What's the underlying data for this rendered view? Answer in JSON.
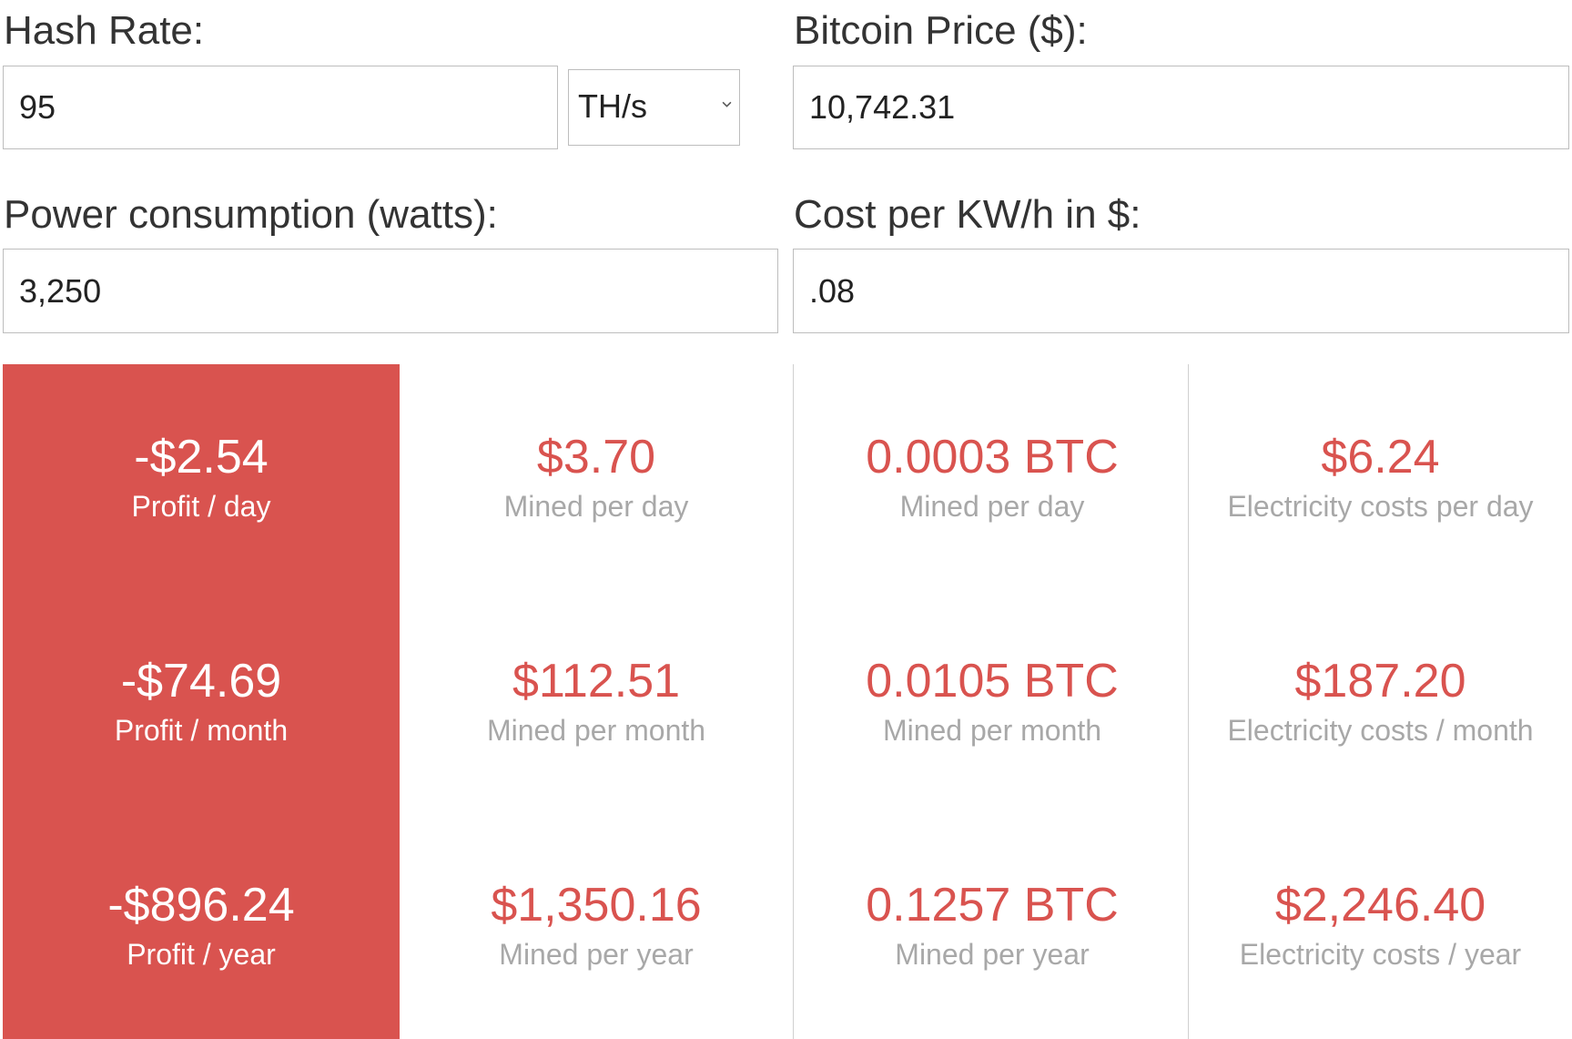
{
  "form": {
    "hash_rate": {
      "label": "Hash Rate:",
      "value": "95",
      "unit": "TH/s"
    },
    "bitcoin_price": {
      "label": "Bitcoin Price ($):",
      "value": "10,742.31"
    },
    "power_consumption": {
      "label": "Power consumption (watts):",
      "value": "3,250"
    },
    "cost_per_kwh": {
      "label": "Cost per KW/h in $:",
      "value": ".08"
    }
  },
  "results": {
    "profit": [
      {
        "value": "-$2.54",
        "caption": "Profit / day"
      },
      {
        "value": "-$74.69",
        "caption": "Profit / month"
      },
      {
        "value": "-$896.24",
        "caption": "Profit / year"
      }
    ],
    "mined_usd": [
      {
        "value": "$3.70",
        "caption": "Mined per day"
      },
      {
        "value": "$112.51",
        "caption": "Mined per month"
      },
      {
        "value": "$1,350.16",
        "caption": "Mined per year"
      }
    ],
    "mined_btc": [
      {
        "value": "0.0003 BTC",
        "caption": "Mined per day"
      },
      {
        "value": "0.0105 BTC",
        "caption": "Mined per month"
      },
      {
        "value": "0.1257 BTC",
        "caption": "Mined per year"
      }
    ],
    "electricity": [
      {
        "value": "$6.24",
        "caption": "Electricity costs per day"
      },
      {
        "value": "$187.20",
        "caption": "Electricity costs / month"
      },
      {
        "value": "$2,246.40",
        "caption": "Electricity costs / year"
      }
    ]
  },
  "colors": {
    "accent_red": "#d9534f",
    "caption_gray": "#a8a8a8",
    "label_dark": "#333333"
  },
  "icons": {
    "unit_select": "chevron-down-icon"
  }
}
